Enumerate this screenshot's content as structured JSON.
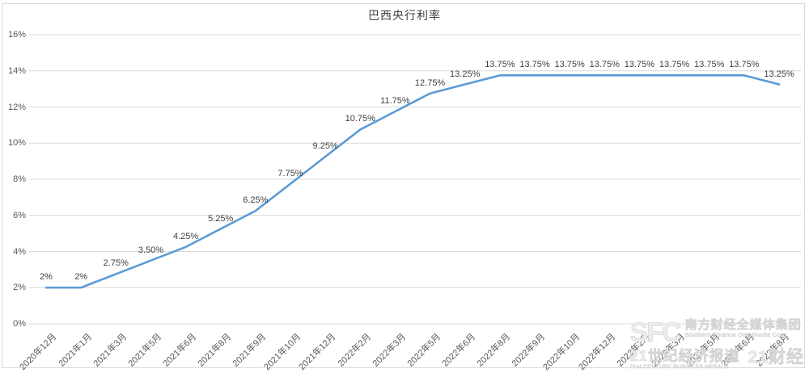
{
  "title": "巴西央行利率",
  "chart_data": {
    "type": "line",
    "title": "巴西央行利率",
    "categories": [
      "2020年12月",
      "2021年1月",
      "2021年3月",
      "2021年5月",
      "2021年6月",
      "2021年8月",
      "2021年9月",
      "2021年10月",
      "2021年12月",
      "2022年2月",
      "2022年3月",
      "2022年5月",
      "2022年6月",
      "2022年8月",
      "2022年9月",
      "2022年10月",
      "2022年12月",
      "2023年2月",
      "2023年3月",
      "2023年5月",
      "2023年6月",
      "2023年8月"
    ],
    "series": [
      {
        "name": "巴西央行利率",
        "values": [
          2,
          2,
          2.75,
          3.5,
          4.25,
          5.25,
          6.25,
          7.75,
          9.25,
          10.75,
          11.75,
          12.75,
          13.25,
          13.75,
          13.75,
          13.75,
          13.75,
          13.75,
          13.75,
          13.75,
          13.75,
          13.25
        ],
        "point_labels": [
          "2%",
          "2%",
          "2.75%",
          "3.50%",
          "4.25%",
          "5.25%",
          "6.25%",
          "7.75%",
          "9.25%",
          "10.75%",
          "11.75%",
          "12.75%",
          "13.25%",
          "13.75%",
          "13.75%",
          "13.75%",
          "13.75%",
          "13.75%",
          "13.75%",
          "13.75%",
          "13.75%",
          "13.25%"
        ]
      }
    ],
    "xlabel": "",
    "ylabel": "",
    "ylim": [
      0,
      16
    ],
    "y_tick_values": [
      0,
      2,
      4,
      6,
      8,
      10,
      12,
      14,
      16
    ],
    "y_tick_labels": [
      "0%",
      "2%",
      "4%",
      "6%",
      "8%",
      "10%",
      "12%",
      "14%",
      "16%"
    ],
    "grid": true,
    "legend_position": "none",
    "line_color": "#5b9bd5",
    "grid_color": "#d9d9d9",
    "axis_text_color": "#595959",
    "label_text_color": "#404040"
  },
  "watermark": {
    "logo": "SFC",
    "company_cn": "南方财经全媒体集团",
    "company_en": "Southern Finance Omnimedia Corp.",
    "brand1": "21世纪经济报道",
    "brand1_en": "21st CENTURY BUSINESS HERALD",
    "brand2": "21财经"
  }
}
